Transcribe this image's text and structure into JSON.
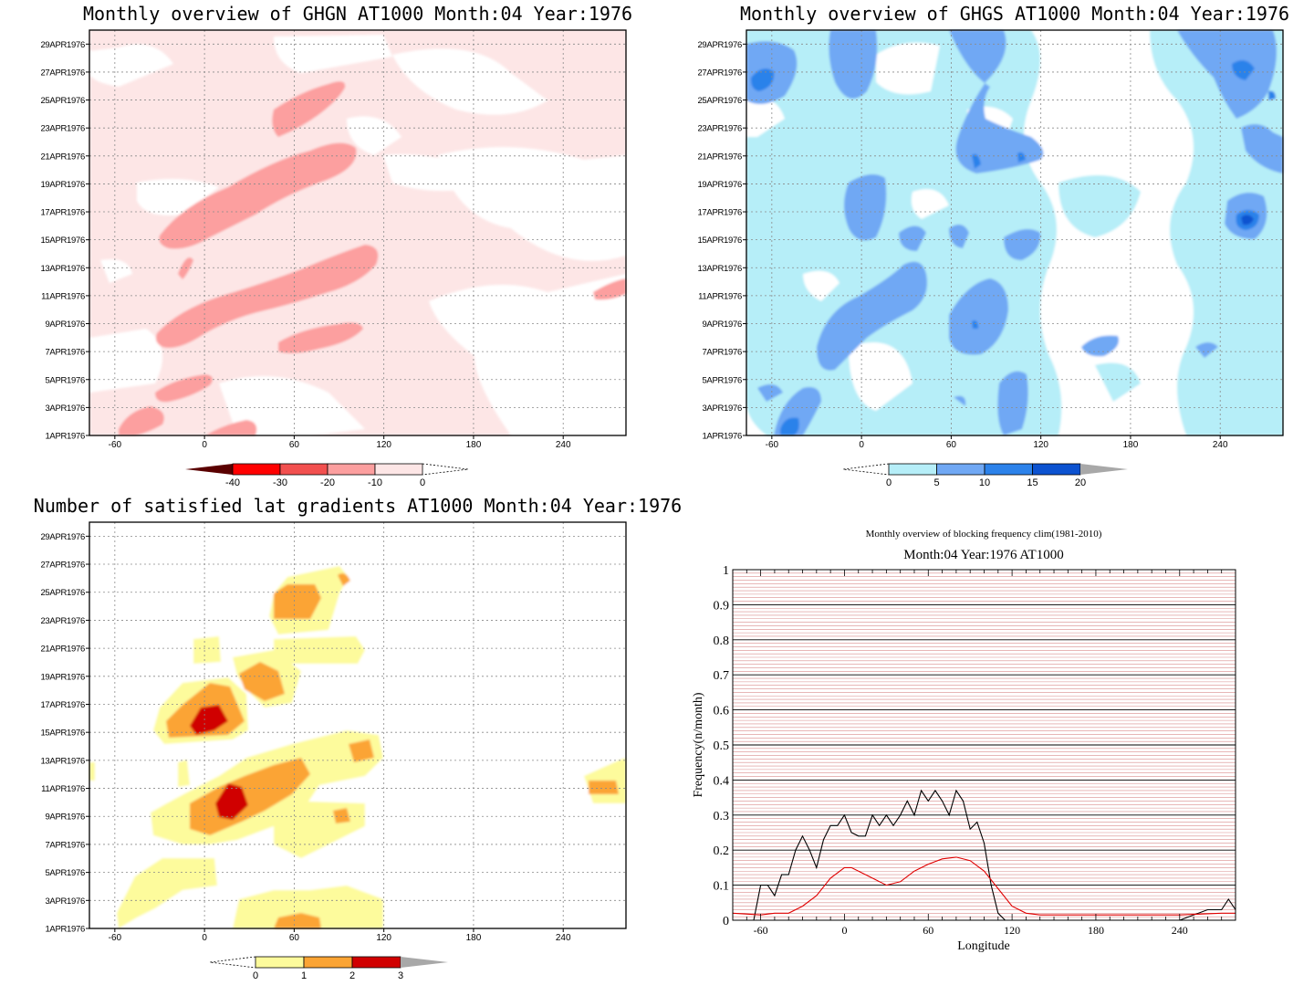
{
  "panels": {
    "ghgn": {
      "title": "Monthly overview of GHGN AT1000 Month:04 Year:1976"
    },
    "ghgs": {
      "title": "Monthly overview of GHGS AT1000 Month:04 Year:1976"
    },
    "lat": {
      "title": "Number of satisfied lat gradients AT1000 Month:04 Year:1976"
    },
    "freq": {
      "title": "Monthly overview of blocking frequency clim(1981-2010)",
      "subtitle": "Month:04 Year:1976  AT1000"
    }
  },
  "colors": {
    "ghgn": [
      "#5a0000",
      "#ff0000",
      "#f2504f",
      "#fc9f9f",
      "#fde6e6"
    ],
    "ghgs": [
      "#b6eef8",
      "#70a8f4",
      "#2c82ea",
      "#0c52d0"
    ],
    "lat": [
      "#fdfb9c",
      "#fba434",
      "#d00000"
    ],
    "block_series": "#000000",
    "clim_series": "#e00000",
    "hgrid": "#d98c8c"
  },
  "chart_data": [
    {
      "type": "heatmap",
      "title": "Monthly overview of GHGN AT1000 Month:04 Year:1976",
      "x_ticks": [
        "-60",
        "0",
        "60",
        "120",
        "180",
        "240"
      ],
      "y_ticks": [
        "1APR1976",
        "3APR1976",
        "5APR1976",
        "7APR1976",
        "9APR1976",
        "11APR1976",
        "13APR1976",
        "15APR1976",
        "17APR1976",
        "19APR1976",
        "21APR1976",
        "23APR1976",
        "25APR1976",
        "27APR1976",
        "29APR1976"
      ],
      "xlim": [
        -77,
        282
      ],
      "ylim": [
        "1APR1976",
        "30APR1976"
      ],
      "colorbar": {
        "labels": [
          "-40",
          "-30",
          "-20",
          "-10",
          "0"
        ],
        "levels": [
          -40,
          -30,
          -20,
          -10,
          0
        ]
      }
    },
    {
      "type": "heatmap",
      "title": "Monthly overview of GHGS AT1000 Month:04 Year:1976",
      "x_ticks": [
        "-60",
        "0",
        "60",
        "120",
        "180",
        "240"
      ],
      "y_ticks": [
        "1APR1976",
        "3APR1976",
        "5APR1976",
        "7APR1976",
        "9APR1976",
        "11APR1976",
        "13APR1976",
        "15APR1976",
        "17APR1976",
        "19APR1976",
        "21APR1976",
        "23APR1976",
        "25APR1976",
        "27APR1976",
        "29APR1976"
      ],
      "xlim": [
        -77,
        282
      ],
      "ylim": [
        "1APR1976",
        "30APR1976"
      ],
      "colorbar": {
        "labels": [
          "0",
          "5",
          "10",
          "15",
          "20"
        ],
        "levels": [
          0,
          5,
          10,
          15,
          20
        ]
      }
    },
    {
      "type": "heatmap",
      "title": "Number of satisfied lat gradients AT1000 Month:04 Year:1976",
      "x_ticks": [
        "-60",
        "0",
        "60",
        "120",
        "180",
        "240"
      ],
      "y_ticks": [
        "1APR1976",
        "3APR1976",
        "5APR1976",
        "7APR1976",
        "9APR1976",
        "11APR1976",
        "13APR1976",
        "15APR1976",
        "17APR1976",
        "19APR1976",
        "21APR1976",
        "23APR1976",
        "25APR1976",
        "27APR1976",
        "29APR1976"
      ],
      "xlim": [
        -77,
        282
      ],
      "ylim": [
        "1APR1976",
        "30APR1976"
      ],
      "colorbar": {
        "labels": [
          "0",
          "1",
          "2",
          "3"
        ],
        "levels": [
          0,
          1,
          2,
          3
        ]
      }
    },
    {
      "type": "line",
      "title": "Monthly overview of blocking frequency clim(1981-2010)",
      "subtitle": "Month:04 Year:1976  AT1000",
      "xlabel": "Longitude",
      "ylabel": "Frequency(n/month)",
      "x_ticks": [
        "-60",
        "0",
        "60",
        "120",
        "180",
        "240"
      ],
      "y_ticks": [
        "0",
        "0.1",
        "0.2",
        "0.3",
        "0.4",
        "0.5",
        "0.6",
        "0.7",
        "0.8",
        "0.9",
        "1"
      ],
      "xlim": [
        -80,
        280
      ],
      "ylim": [
        0,
        1
      ],
      "grid": true,
      "series": [
        {
          "x": [
            -80,
            -65,
            -60,
            -55,
            -50,
            -45,
            -40,
            -35,
            -30,
            -25,
            -20,
            -15,
            -10,
            -5,
            0,
            5,
            10,
            15,
            20,
            25,
            30,
            35,
            40,
            45,
            50,
            55,
            60,
            65,
            70,
            75,
            80,
            85,
            90,
            95,
            100,
            105,
            110,
            115,
            120,
            180,
            240,
            260,
            270,
            275,
            280
          ],
          "y": [
            0.0,
            0.0,
            0.1,
            0.1,
            0.07,
            0.13,
            0.13,
            0.2,
            0.24,
            0.2,
            0.15,
            0.23,
            0.27,
            0.27,
            0.3,
            0.25,
            0.24,
            0.24,
            0.3,
            0.27,
            0.3,
            0.27,
            0.3,
            0.34,
            0.3,
            0.37,
            0.34,
            0.37,
            0.34,
            0.3,
            0.37,
            0.34,
            0.26,
            0.28,
            0.22,
            0.1,
            0.02,
            0.0,
            0.0,
            0.0,
            0.0,
            0.03,
            0.03,
            0.06,
            0.03
          ]
        },
        {
          "x": [
            -80,
            -60,
            -50,
            -40,
            -30,
            -20,
            -10,
            0,
            5,
            10,
            20,
            30,
            40,
            50,
            60,
            70,
            80,
            90,
            100,
            110,
            120,
            130,
            140,
            180,
            240,
            270,
            280
          ],
          "y": [
            0.02,
            0.015,
            0.02,
            0.02,
            0.04,
            0.07,
            0.12,
            0.15,
            0.15,
            0.14,
            0.12,
            0.1,
            0.11,
            0.14,
            0.16,
            0.175,
            0.18,
            0.17,
            0.14,
            0.09,
            0.04,
            0.02,
            0.015,
            0.015,
            0.015,
            0.02,
            0.02
          ]
        }
      ]
    }
  ]
}
